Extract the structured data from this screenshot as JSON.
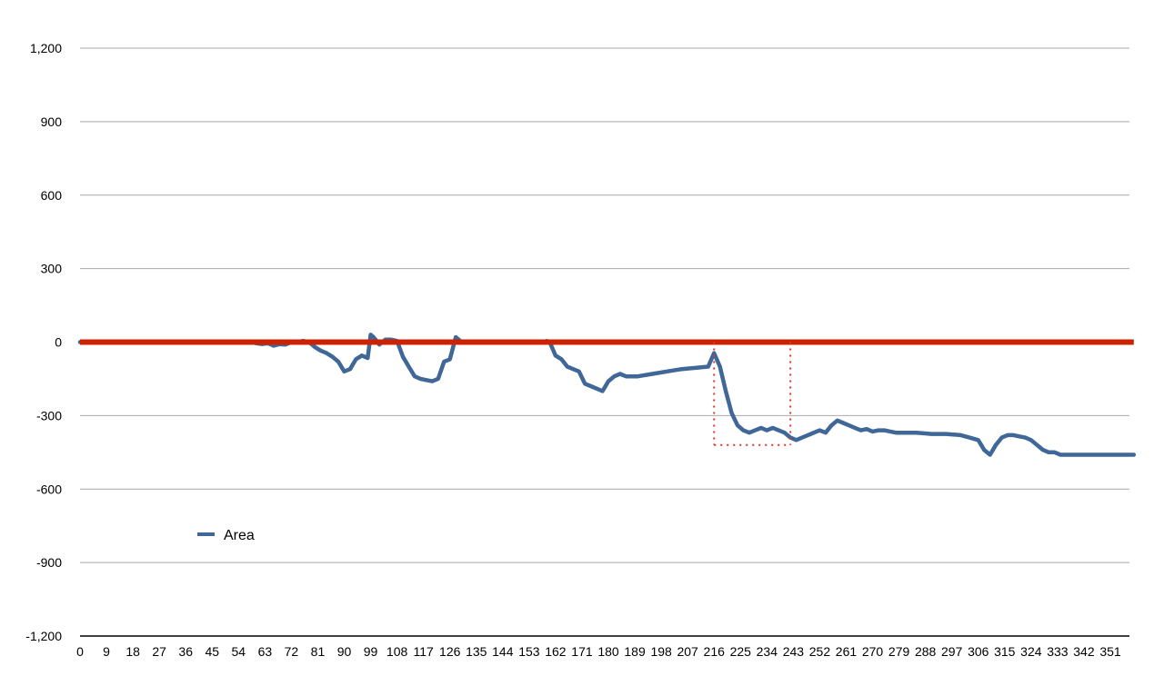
{
  "chart_data": {
    "type": "line",
    "title": "",
    "xlabel": "",
    "ylabel": "",
    "ylim": [
      -1200,
      1200
    ],
    "xlim": [
      0,
      359
    ],
    "grid": true,
    "legend_position": "left-middle",
    "y_ticks": [
      1200,
      900,
      600,
      300,
      0,
      -300,
      -600,
      -900,
      -1200
    ],
    "y_tick_labels": [
      "1,200",
      "900",
      "600",
      "300",
      "0",
      "-300",
      "-600",
      "-900",
      "-1,200"
    ],
    "x_ticks": [
      0,
      9,
      18,
      27,
      36,
      45,
      54,
      63,
      72,
      81,
      90,
      99,
      108,
      117,
      126,
      135,
      144,
      153,
      162,
      171,
      180,
      189,
      198,
      207,
      216,
      225,
      234,
      243,
      252,
      261,
      270,
      279,
      288,
      297,
      306,
      315,
      324,
      333,
      342,
      351
    ],
    "series": [
      {
        "name": "Area",
        "color": "#3f6797",
        "x": [
          0,
          59,
          60,
          62,
          64,
          66,
          68,
          70,
          72,
          74,
          76,
          78,
          80,
          82,
          84,
          86,
          88,
          90,
          92,
          94,
          96,
          98,
          99,
          100,
          102,
          104,
          106,
          108,
          110,
          112,
          114,
          116,
          118,
          120,
          122,
          124,
          126,
          128,
          130,
          132,
          135,
          140,
          145,
          150,
          155,
          158,
          159,
          160,
          162,
          164,
          166,
          168,
          170,
          172,
          174,
          176,
          178,
          180,
          182,
          184,
          186,
          190,
          195,
          200,
          205,
          210,
          214,
          216,
          218,
          220,
          222,
          224,
          226,
          228,
          230,
          232,
          234,
          236,
          238,
          240,
          242,
          244,
          246,
          248,
          250,
          252,
          254,
          256,
          258,
          260,
          262,
          264,
          266,
          268,
          270,
          272,
          274,
          276,
          278,
          280,
          285,
          290,
          295,
          300,
          303,
          306,
          307,
          308,
          310,
          312,
          314,
          316,
          318,
          320,
          322,
          324,
          326,
          328,
          330,
          332,
          334,
          336,
          338,
          340,
          345,
          350,
          359
        ],
        "values": [
          0,
          0,
          -5,
          -8,
          -5,
          -15,
          -8,
          -10,
          0,
          0,
          5,
          0,
          -20,
          -35,
          -45,
          -60,
          -80,
          -120,
          -110,
          -70,
          -55,
          -65,
          30,
          20,
          -10,
          10,
          10,
          5,
          -60,
          -100,
          -140,
          -150,
          -155,
          -160,
          -150,
          -80,
          -70,
          20,
          0,
          0,
          0,
          0,
          0,
          0,
          0,
          0,
          5,
          0,
          -55,
          -70,
          -100,
          -110,
          -120,
          -170,
          -180,
          -190,
          -200,
          -160,
          -140,
          -130,
          -140,
          -140,
          -130,
          -120,
          -110,
          -105,
          -100,
          -45,
          -100,
          -200,
          -290,
          -340,
          -360,
          -370,
          -360,
          -350,
          -360,
          -350,
          -360,
          -370,
          -390,
          -400,
          -390,
          -380,
          -370,
          -360,
          -370,
          -340,
          -320,
          -330,
          -340,
          -350,
          -360,
          -355,
          -365,
          -360,
          -360,
          -365,
          -370,
          -370,
          -370,
          -375,
          -375,
          -380,
          -390,
          -400,
          -420,
          -440,
          -460,
          -420,
          -390,
          -380,
          -380,
          -385,
          -390,
          -400,
          -420,
          -440,
          -450,
          -450,
          -460,
          -460,
          -460,
          -460,
          -460,
          -460,
          -460
        ]
      },
      {
        "name": "",
        "color": "#cc2200",
        "x": [
          0,
          359
        ],
        "values": [
          0,
          0
        ]
      }
    ],
    "annotations": [
      {
        "type": "dotted-rectangle",
        "color": "#d9342b",
        "x_range": [
          216,
          242
        ],
        "y_range": [
          -420,
          0
        ]
      }
    ]
  }
}
